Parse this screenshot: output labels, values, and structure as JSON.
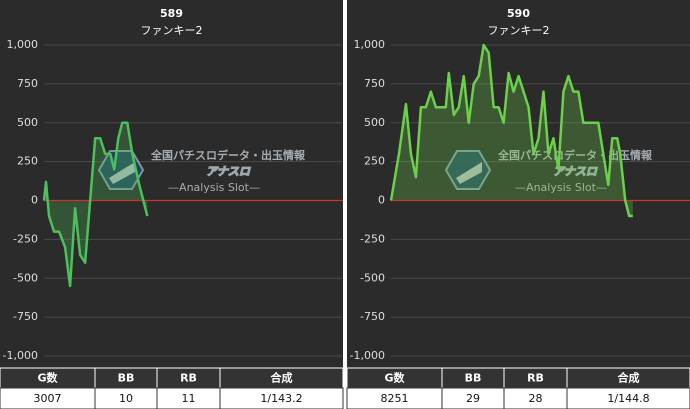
{
  "chart_data": [
    {
      "type": "line",
      "title": "589",
      "subtitle": "ファンキー2",
      "x": [
        0,
        58,
        146,
        292,
        438,
        613,
        759,
        905,
        1051,
        1197,
        1343,
        1489,
        1635,
        1781,
        1927,
        2044,
        2161,
        2278,
        2424,
        2570,
        2774,
        3007
      ],
      "values": [
        0,
        120,
        -100,
        -200,
        -200,
        -300,
        -550,
        -50,
        -350,
        -400,
        0,
        400,
        400,
        300,
        300,
        200,
        400,
        500,
        500,
        300,
        100,
        -100
      ],
      "color": "#4cc05a",
      "zero_line_color": "#c0392b",
      "grid": true,
      "xlim": [
        0,
        8700
      ],
      "ylim": [
        -1000,
        1000
      ],
      "yticks": [
        {
          "value": -1000,
          "label": "-1,000"
        },
        -750,
        -500,
        -250,
        0,
        250,
        500,
        750,
        {
          "value": 1000,
          "label": "1,000"
        }
      ],
      "watermark": {
        "tagline": "全国パチスロデータ・出玉情報",
        "logo": "アナスロ",
        "sub": "—Analysis Slot—"
      },
      "table": {
        "header": [
          "G数",
          "BB",
          "RB",
          "合成"
        ],
        "row": [
          3007,
          10,
          11,
          "1/143.2"
        ]
      }
    },
    {
      "type": "line",
      "title": "590",
      "subtitle": "ファンキー2",
      "x": [
        0,
        272,
        510,
        680,
        850,
        1020,
        1190,
        1360,
        1530,
        1700,
        1870,
        1972,
        2142,
        2312,
        2482,
        2652,
        2822,
        2992,
        3162,
        3332,
        3502,
        3672,
        3842,
        4012,
        4182,
        4352,
        4522,
        4692,
        4862,
        5032,
        5202,
        5372,
        5542,
        5712,
        5882,
        6052,
        6222,
        6392,
        6562,
        6732,
        6902,
        7072,
        7242,
        7412,
        7548,
        7718,
        7820,
        7990,
        8126,
        8251
      ],
      "values": [
        0,
        300,
        620,
        300,
        150,
        600,
        600,
        700,
        600,
        600,
        600,
        820,
        550,
        600,
        800,
        500,
        750,
        800,
        1000,
        950,
        600,
        600,
        500,
        820,
        700,
        800,
        700,
        600,
        300,
        400,
        700,
        300,
        400,
        200,
        700,
        800,
        700,
        700,
        500,
        500,
        500,
        500,
        300,
        100,
        400,
        400,
        300,
        0,
        -100,
        -100
      ],
      "color": "#6cd04a",
      "zero_line_color": "#c0392b",
      "grid": true,
      "xlim": [
        0,
        10200
      ],
      "ylim": [
        -1000,
        1000
      ],
      "yticks": [
        {
          "value": -1000,
          "label": "-1,000"
        },
        -750,
        -500,
        -250,
        0,
        250,
        500,
        750,
        {
          "value": 1000,
          "label": "1,000"
        }
      ],
      "watermark": {
        "tagline": "全国パチスロデータ・出玉情報",
        "logo": "アナスロ",
        "sub": "—Analysis Slot—"
      },
      "table": {
        "header": [
          "G数",
          "BB",
          "RB",
          "合成"
        ],
        "row": [
          8251,
          29,
          28,
          "1/144.8"
        ]
      }
    }
  ]
}
